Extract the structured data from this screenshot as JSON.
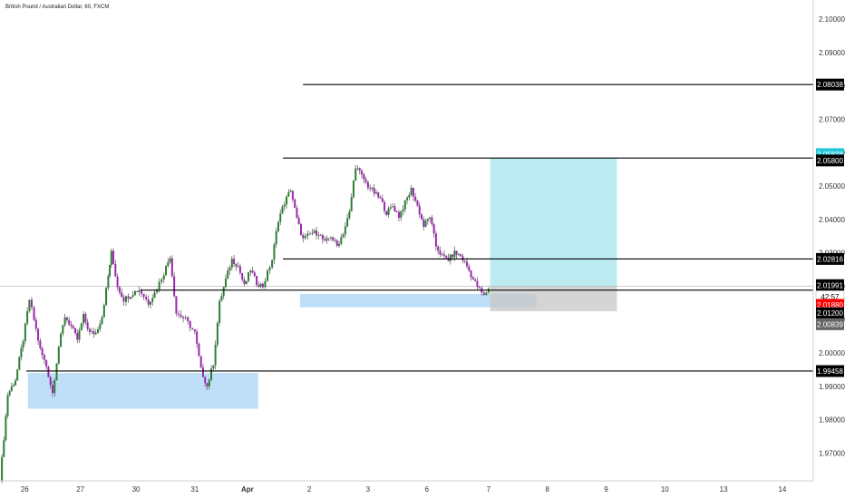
{
  "chart_data": {
    "type": "candlestick",
    "title": "British Pound / Australian Dollar, 60, FXCM",
    "colors": {
      "up": "#2e7d32",
      "down": "#9c27b0",
      "wick": "#555555",
      "line": "#000000",
      "demand": "#a9d4f5",
      "target": "#a6e6ee",
      "stop": "#c7c7c7"
    },
    "ylim": [
      1.9617,
      2.1057
    ],
    "y_ticks": [
      "2.10000",
      "2.09000",
      "2.08000",
      "2.07000",
      "2.06000",
      "2.05000",
      "2.04000",
      "2.03000",
      "2.02000",
      "2.01000",
      "2.00000",
      "1.99000",
      "1.98000",
      "1.97000"
    ],
    "x_ticks": [
      {
        "label": "26",
        "t": 0.8
      },
      {
        "label": "27",
        "t": 2.6
      },
      {
        "label": "30",
        "t": 4.4
      },
      {
        "label": "31",
        "t": 6.3
      },
      {
        "label": "Apr",
        "t": 8.0
      },
      {
        "label": "2",
        "t": 10.0
      },
      {
        "label": "3",
        "t": 11.9
      },
      {
        "label": "6",
        "t": 13.8
      },
      {
        "label": "7",
        "t": 15.8
      },
      {
        "label": "8",
        "t": 17.7
      },
      {
        "label": "9",
        "t": 19.6
      },
      {
        "label": "10",
        "t": 21.5
      },
      {
        "label": "13",
        "t": 23.4
      },
      {
        "label": "14",
        "t": 25.3
      }
    ],
    "xlim": [
      0,
      26.3
    ],
    "candles": [
      [
        0,
        1.9617
      ],
      [
        0.25,
        1.9875
      ],
      [
        0.5,
        1.992
      ],
      [
        0.75,
        2.004
      ],
      [
        0.95,
        2.016
      ],
      [
        1.1,
        2.01
      ],
      [
        1.3,
        2.001
      ],
      [
        1.5,
        1.996
      ],
      [
        1.7,
        1.988
      ],
      [
        1.9,
        2.002
      ],
      [
        2.1,
        2.011
      ],
      [
        2.3,
        2.008
      ],
      [
        2.5,
        2.004
      ],
      [
        2.7,
        2.011
      ],
      [
        2.9,
        2.006
      ],
      [
        3.1,
        2.006
      ],
      [
        3.3,
        2.011
      ],
      [
        3.5,
        2.023
      ],
      [
        3.6,
        2.03
      ],
      [
        3.8,
        2.02
      ],
      [
        4.0,
        2.016
      ],
      [
        4.3,
        2.018
      ],
      [
        4.5,
        2.019
      ],
      [
        4.8,
        2.015
      ],
      [
        5.0,
        2.018
      ],
      [
        5.3,
        2.024
      ],
      [
        5.5,
        2.029
      ],
      [
        5.7,
        2.012
      ],
      [
        6.0,
        2.01
      ],
      [
        6.3,
        2.006
      ],
      [
        6.5,
        1.995
      ],
      [
        6.7,
        1.99
      ],
      [
        6.9,
        1.997
      ],
      [
        7.1,
        2.015
      ],
      [
        7.3,
        2.022
      ],
      [
        7.5,
        2.028
      ],
      [
        7.7,
        2.026
      ],
      [
        7.9,
        2.02
      ],
      [
        8.1,
        2.025
      ],
      [
        8.3,
        2.021
      ],
      [
        8.5,
        2.02
      ],
      [
        8.8,
        2.028
      ],
      [
        9.0,
        2.04
      ],
      [
        9.2,
        2.045
      ],
      [
        9.4,
        2.049
      ],
      [
        9.6,
        2.04
      ],
      [
        9.8,
        2.034
      ],
      [
        10.1,
        2.036
      ],
      [
        10.3,
        2.036
      ],
      [
        10.5,
        2.033
      ],
      [
        10.7,
        2.035
      ],
      [
        10.9,
        2.032
      ],
      [
        11.1,
        2.036
      ],
      [
        11.3,
        2.042
      ],
      [
        11.5,
        2.056
      ],
      [
        11.7,
        2.053
      ],
      [
        11.9,
        2.05
      ],
      [
        12.1,
        2.048
      ],
      [
        12.3,
        2.046
      ],
      [
        12.5,
        2.042
      ],
      [
        12.7,
        2.044
      ],
      [
        12.9,
        2.041
      ],
      [
        13.1,
        2.045
      ],
      [
        13.3,
        2.049
      ],
      [
        13.5,
        2.044
      ],
      [
        13.7,
        2.038
      ],
      [
        13.9,
        2.041
      ],
      [
        14.1,
        2.032
      ],
      [
        14.3,
        2.029
      ],
      [
        14.5,
        2.028
      ],
      [
        14.7,
        2.03
      ],
      [
        14.9,
        2.029
      ],
      [
        15.1,
        2.026
      ],
      [
        15.3,
        2.022
      ],
      [
        15.5,
        2.019
      ],
      [
        15.65,
        2.017
      ],
      [
        15.8,
        2.0195
      ]
    ],
    "zones": [
      {
        "name": "demand-zone-left",
        "t0": 0.9,
        "t1": 8.35,
        "p0": 1.9833,
        "p1": 1.994,
        "color": "#a9d4f5"
      },
      {
        "name": "demand-zone-mid",
        "t0": 9.7,
        "t1": 17.35,
        "p0": 2.0137,
        "p1": 2.0177,
        "color": "#a9d4f5"
      },
      {
        "name": "target-zone",
        "t0": 15.85,
        "t1": 19.95,
        "p0": 2.0199,
        "p1": 2.0584,
        "color": "#a6e6ee"
      },
      {
        "name": "stop-zone",
        "t0": 15.85,
        "t1": 19.95,
        "p0": 2.0125,
        "p1": 2.0199,
        "color": "#c7c7c7"
      }
    ],
    "hlines": [
      {
        "price": 2.08038,
        "t0": 9.8,
        "t1": 26.3
      },
      {
        "price": 2.05838,
        "t0": 9.15,
        "t1": 26.3
      },
      {
        "price": 2.02816,
        "t0": 9.15,
        "t1": 26.3
      },
      {
        "price": 2.0188,
        "t0": 4.55,
        "t1": 26.3
      },
      {
        "price": 1.99458,
        "t0": 0.85,
        "t1": 26.3
      }
    ],
    "price_line": 2.01991,
    "price_labels": [
      {
        "text": "2.08038",
        "price": 2.08038,
        "bg": "#000000",
        "fg": "#ffffff"
      },
      {
        "text": "2.05838",
        "price": 2.05955,
        "bg": "#26c6da",
        "fg": "#ffffff"
      },
      {
        "text": "2.05800",
        "price": 2.05765,
        "bg": "#000000",
        "fg": "#ffffff"
      },
      {
        "text": "2.02816",
        "price": 2.02816,
        "bg": "#000000",
        "fg": "#ffffff"
      },
      {
        "text": "2.01991",
        "price": 2.0203,
        "bg": "#000000",
        "fg": "#ffffff"
      },
      {
        "text": "42:57",
        "price": 2.01685,
        "bg": "#ffffff",
        "fg": "#000000"
      },
      {
        "text": "2.01880",
        "price": 2.0144,
        "bg": "#ff0000",
        "fg": "#ffffff"
      },
      {
        "text": "2.01200",
        "price": 2.0119,
        "bg": "#000000",
        "fg": "#ffffff"
      },
      {
        "text": "2.00839",
        "price": 2.0086,
        "bg": "#666666",
        "fg": "#ffffff"
      },
      {
        "text": "1.99458",
        "price": 1.99458,
        "bg": "#000000",
        "fg": "#ffffff"
      }
    ]
  }
}
